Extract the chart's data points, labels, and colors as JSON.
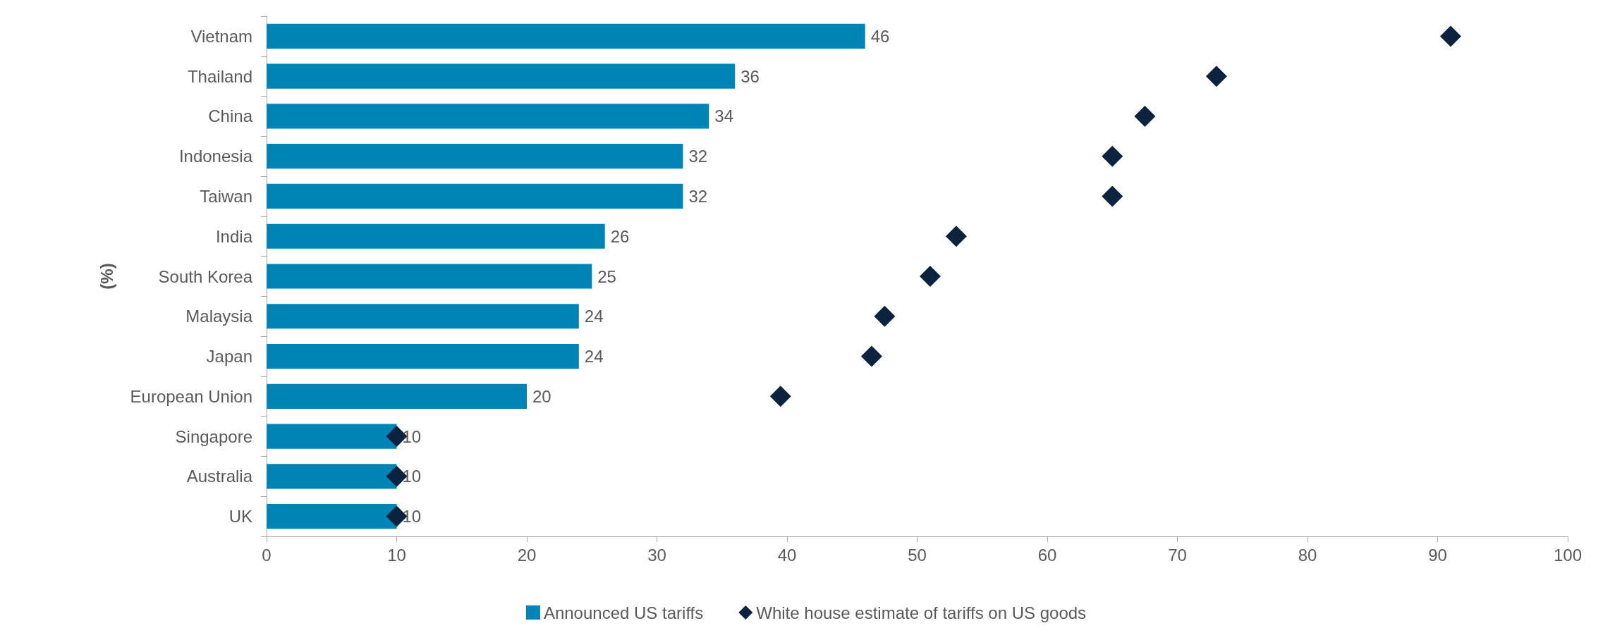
{
  "chart_data": {
    "type": "bar",
    "orientation": "horizontal",
    "ylabel": "(%)",
    "categories": [
      "Vietnam",
      "Thailand",
      "China",
      "Indonesia",
      "Taiwan",
      "India",
      "South Korea",
      "Malaysia",
      "Japan",
      "European Union",
      "Singapore",
      "Australia",
      "UK"
    ],
    "series": [
      {
        "name": "Announced US tariffs",
        "color": "#0083b5",
        "values": [
          46,
          36,
          34,
          32,
          32,
          26,
          25,
          24,
          24,
          20,
          10,
          10,
          10
        ],
        "value_labels": [
          "46",
          "36",
          "34",
          "32",
          "32",
          "26",
          "25",
          "24",
          "24",
          "20",
          "10",
          "10",
          "10"
        ]
      },
      {
        "name": "White house estimate of tariffs on US goods",
        "type": "scatter",
        "marker": "diamond",
        "color": "#0c2340",
        "values": [
          91,
          73,
          67.5,
          65,
          65,
          53,
          51,
          47.5,
          46.5,
          39.5,
          10,
          10,
          10
        ]
      }
    ],
    "xlim": [
      0,
      100
    ],
    "xticks": [
      0,
      10,
      20,
      30,
      40,
      50,
      60,
      70,
      80,
      90,
      100
    ],
    "grid": false,
    "legend": "bottom"
  }
}
